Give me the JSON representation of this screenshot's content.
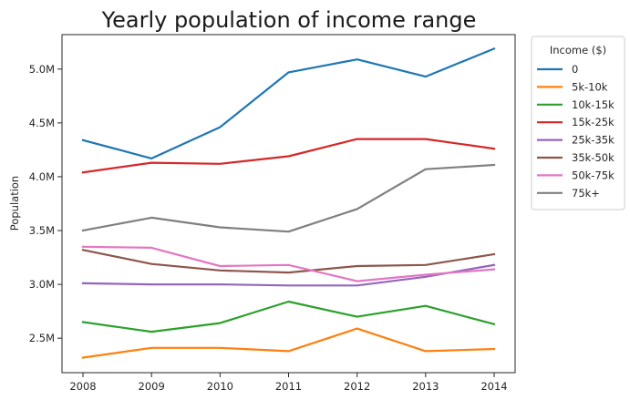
{
  "chart_data": {
    "type": "line",
    "title": "Yearly population of income range",
    "xlabel": "",
    "ylabel": "Population",
    "x": [
      2008,
      2009,
      2010,
      2011,
      2012,
      2013,
      2014
    ],
    "ylim": [
      2.18,
      5.32
    ],
    "yticks": [
      2.5,
      3.0,
      3.5,
      4.0,
      4.5,
      5.0
    ],
    "ytick_labels": [
      "2.5M",
      "3.0M",
      "3.5M",
      "4.0M",
      "4.5M",
      "5.0M"
    ],
    "grid": false,
    "legend": {
      "title": "Income ($)",
      "placement": "outside-top-right"
    },
    "series": [
      {
        "name": "0",
        "color": "#1f77b4",
        "values": [
          4.34,
          4.17,
          4.46,
          4.97,
          5.09,
          4.93,
          5.19
        ]
      },
      {
        "name": "5k-10k",
        "color": "#ff7f0e",
        "values": [
          2.32,
          2.41,
          2.41,
          2.38,
          2.59,
          2.38,
          2.4
        ]
      },
      {
        "name": "10k-15k",
        "color": "#2ca02c",
        "values": [
          2.65,
          2.56,
          2.64,
          2.84,
          2.7,
          2.8,
          2.63
        ]
      },
      {
        "name": "15k-25k",
        "color": "#d62728",
        "values": [
          4.04,
          4.13,
          4.12,
          4.19,
          4.35,
          4.35,
          4.26
        ]
      },
      {
        "name": "25k-35k",
        "color": "#9467bd",
        "values": [
          3.01,
          3.0,
          3.0,
          2.99,
          2.99,
          3.07,
          3.18
        ]
      },
      {
        "name": "35k-50k",
        "color": "#8c564b",
        "values": [
          3.32,
          3.19,
          3.13,
          3.11,
          3.17,
          3.18,
          3.28
        ]
      },
      {
        "name": "50k-75k",
        "color": "#e377c2",
        "values": [
          3.35,
          3.34,
          3.17,
          3.18,
          3.03,
          3.09,
          3.14
        ]
      },
      {
        "name": "75k+",
        "color": "#7f7f7f",
        "values": [
          3.5,
          3.62,
          3.53,
          3.49,
          3.7,
          4.07,
          4.11
        ]
      }
    ]
  }
}
